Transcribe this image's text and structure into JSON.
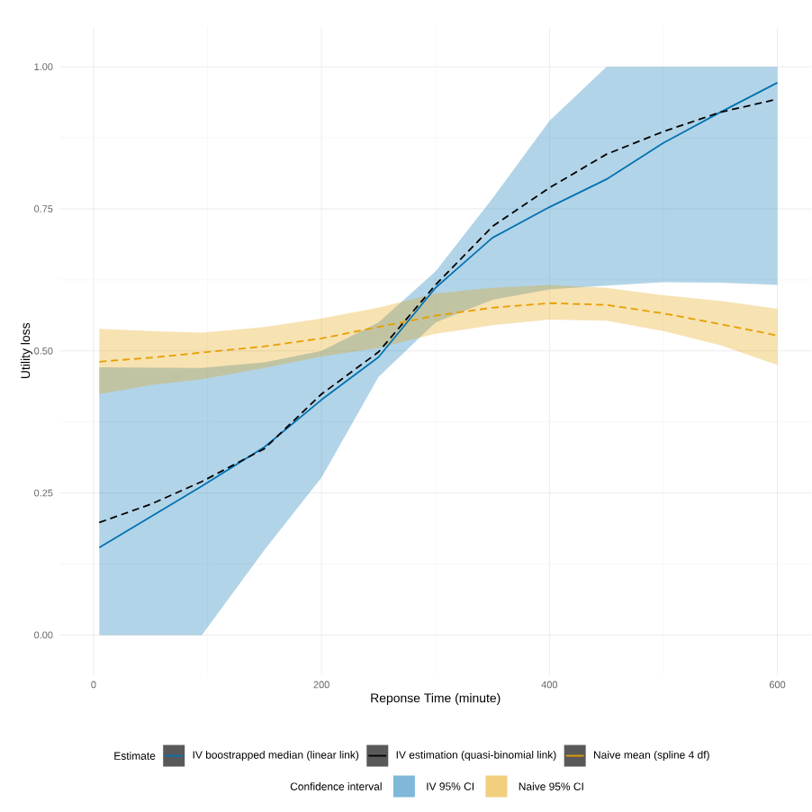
{
  "chart_data": {
    "type": "line",
    "xlabel": "Reponse Time (minute)",
    "ylabel": "Utility loss",
    "legend_title": "Estimate",
    "legend": "bottom",
    "grid": true,
    "x": [
      5,
      50,
      95,
      150,
      200,
      250,
      300,
      350,
      400,
      450,
      500,
      550,
      600
    ],
    "series": [
      {
        "name": "IV boostrapped median (linear link)",
        "color": "#0072b2",
        "line_style": "solid",
        "x": [
          5,
          95,
          150,
          200,
          250,
          300,
          350,
          400,
          450,
          500,
          550,
          600
        ],
        "values": [
          0.154,
          0.262,
          0.331,
          0.414,
          0.489,
          0.611,
          0.699,
          0.753,
          0.802,
          0.866,
          0.92,
          0.972
        ],
        "lower": [
          0,
          0,
          0.15,
          0.277,
          0.454,
          0.55,
          0.59,
          0.608,
          0.615,
          0.621,
          0.62,
          0.616
        ],
        "upper": [
          0.471,
          0.47,
          0.48,
          0.5,
          0.55,
          0.64,
          0.768,
          0.905,
          1.0,
          1.0,
          1.0,
          1.0
        ]
      },
      {
        "name": "IV estimation (quasi-binomial link)",
        "color": "#000000",
        "line_style": "dashed",
        "values": [
          0.198,
          0.23,
          0.27,
          0.328,
          0.424,
          0.498,
          0.616,
          0.719,
          0.787,
          0.846,
          0.886,
          0.92,
          0.943
        ]
      },
      {
        "name": "Naive mean (spline 4 df)",
        "color": "#e69f00",
        "line_style": "dashed",
        "values": [
          0.481,
          0.488,
          0.497,
          0.508,
          0.522,
          0.542,
          0.562,
          0.576,
          0.584,
          0.581,
          0.566,
          0.547,
          0.527
        ],
        "lower": [
          0.424,
          0.44,
          0.45,
          0.47,
          0.49,
          0.505,
          0.53,
          0.545,
          0.555,
          0.553,
          0.535,
          0.51,
          0.475
        ],
        "upper": [
          0.539,
          0.535,
          0.532,
          0.542,
          0.557,
          0.576,
          0.601,
          0.611,
          0.616,
          0.611,
          0.598,
          0.588,
          0.574
        ]
      }
    ],
    "annotations": [
      "Confidence interval",
      "IV 95% CI",
      "Naive 95% CI"
    ],
    "xlim": [
      -30,
      630
    ],
    "xticks": [
      0,
      200,
      400,
      600
    ],
    "ylim": [
      -0.07,
      1.07
    ],
    "yticks": [
      {
        "value": 0,
        "label": "0.00"
      },
      {
        "value": 0.25,
        "label": "0.25"
      },
      {
        "value": 0.5,
        "label": "0.50"
      },
      {
        "value": 0.75,
        "label": "0.75"
      },
      {
        "value": 1,
        "label": "1.00"
      }
    ]
  }
}
